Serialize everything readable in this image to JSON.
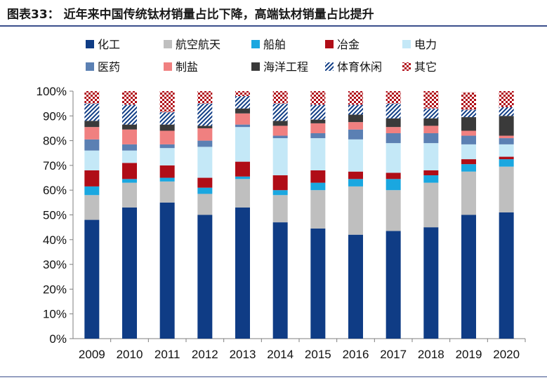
{
  "title": "图表33：  近年来中国传统钛材销量占比下降，高端钛材销量占比提升",
  "chart_data": {
    "type": "bar",
    "stacked": true,
    "title": "图表33：  近年来中国传统钛材销量占比下降，高端钛材销量占比提升",
    "xlabel": "",
    "ylabel": "",
    "ylim": [
      0,
      100
    ],
    "yticks": [
      "0%",
      "10%",
      "20%",
      "30%",
      "40%",
      "50%",
      "60%",
      "70%",
      "80%",
      "90%",
      "100%"
    ],
    "categories": [
      "2009",
      "2010",
      "2011",
      "2012",
      "2013",
      "2014",
      "2015",
      "2016",
      "2017",
      "2018",
      "2019",
      "2020"
    ],
    "legend_position": "top",
    "series": [
      {
        "name": "化工",
        "color": "#0f3c85",
        "pattern": "solid",
        "values": [
          48,
          53,
          55,
          50,
          53,
          47,
          44.5,
          42,
          43.5,
          45,
          50,
          51
        ]
      },
      {
        "name": "航空航天",
        "color": "#bfbfbf",
        "pattern": "solid",
        "values": [
          10,
          10,
          8.5,
          8.5,
          11.5,
          11,
          15.5,
          19.5,
          16.5,
          18,
          17.5,
          18.5
        ]
      },
      {
        "name": "船舶",
        "color": "#1aa7e0",
        "pattern": "solid",
        "values": [
          3.5,
          1.5,
          1.5,
          2.5,
          1,
          2,
          3,
          3,
          4.5,
          3,
          3,
          3
        ]
      },
      {
        "name": "冶金",
        "color": "#b00d17",
        "pattern": "solid",
        "values": [
          6.5,
          6.5,
          5,
          4,
          6,
          6,
          5,
          3,
          2.5,
          2,
          2,
          1
        ]
      },
      {
        "name": "电力",
        "color": "#c4e8f7",
        "pattern": "solid",
        "values": [
          8,
          5,
          7,
          12.5,
          14,
          15,
          13,
          13,
          12,
          11,
          6,
          5
        ]
      },
      {
        "name": "医药",
        "color": "#5b80b3",
        "pattern": "solid",
        "values": [
          4.5,
          2.5,
          1.5,
          2.5,
          1,
          1,
          2,
          4,
          4,
          4,
          3.5,
          2.5
        ]
      },
      {
        "name": "制盐",
        "color": "#f08080",
        "pattern": "solid",
        "values": [
          5,
          6,
          5.5,
          5,
          4.5,
          4,
          4,
          3,
          2.5,
          3,
          2,
          1
        ]
      },
      {
        "name": "海洋工程",
        "color": "#3a3a3a",
        "pattern": "solid",
        "values": [
          2.5,
          2,
          2.5,
          1,
          2,
          2,
          1.5,
          3,
          3.5,
          3,
          5.5,
          8
        ]
      },
      {
        "name": "体育休闲",
        "color": "#0f3c85",
        "pattern": "diagonal",
        "values": [
          7,
          8,
          5,
          9,
          5,
          7,
          6,
          4,
          6,
          4,
          3,
          3.5
        ]
      },
      {
        "name": "其它",
        "color": "#b00d17",
        "pattern": "checker",
        "values": [
          5,
          5.5,
          8.5,
          5,
          2,
          5,
          5.5,
          5.5,
          5,
          7,
          7,
          6.5
        ]
      }
    ]
  }
}
